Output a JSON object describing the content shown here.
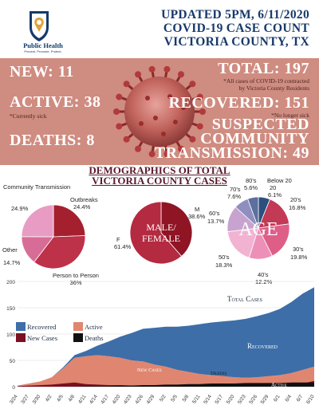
{
  "header": {
    "org_name": "Public Health",
    "org_tagline": "Prevent. Promote. Protect.",
    "line1": "UPDATED 5PM, 6/11/2020",
    "line2": "COVID-19 CASE COUNT",
    "line3": "VICTORIA COUNTY, TX"
  },
  "stats": {
    "new": "NEW: 11",
    "active": "ACTIVE: 38",
    "active_note": "*Currently sick",
    "deaths": "DEATHS: 8",
    "total": "TOTAL: 197",
    "total_note_1": "*All cases of COVID-19 contracted",
    "total_note_2": "by Victoria County Residents",
    "recovered": "RECOVERED: 151",
    "recovered_note": "*No longer sick",
    "suspected_1": "SUSPECTED",
    "suspected_2": "COMMUNITY",
    "suspected_3": "TRANSMISSION: 49"
  },
  "demographics": {
    "title_1": "DEMOGRAPHICS OF TOTAL",
    "title_2": "VICTORIA COUNTY CASES"
  },
  "chart_data": [
    {
      "type": "pie",
      "slices": [
        {
          "label": "Outbreaks",
          "value": 24.4,
          "value_label": "24.4%",
          "color": "#a5202e"
        },
        {
          "label": "Person to Person",
          "value": 36,
          "value_label": "36%",
          "color": "#bd3149"
        },
        {
          "label": "Other",
          "value": 14.7,
          "value_label": "14.7%",
          "color": "#d76d97"
        },
        {
          "label": "Community Transmission",
          "value": 24.9,
          "value_label": "24.9%",
          "color": "#e89cc4"
        }
      ]
    },
    {
      "type": "pie",
      "center_label_1": "MALE/",
      "center_label_2": "FEMALE",
      "slices": [
        {
          "label": "M",
          "value": 38.6,
          "value_label": "38.6%",
          "color": "#8f1424"
        },
        {
          "label": "F",
          "value": 61.4,
          "value_label": "61.4%",
          "color": "#b42a40"
        }
      ]
    },
    {
      "type": "pie",
      "center_label": "AGE",
      "slices": [
        {
          "label": "Below 20",
          "value": 6.1,
          "value_label": "6.1%",
          "color": "#2c4f7d"
        },
        {
          "label": "20's",
          "value": 16.8,
          "value_label": "16.8%",
          "color": "#c23a55"
        },
        {
          "label": "30's",
          "value": 19.8,
          "value_label": "19.8%",
          "color": "#de5e87"
        },
        {
          "label": "40's",
          "value": 12.2,
          "value_label": "12.2%",
          "color": "#ec90b8"
        },
        {
          "label": "50's",
          "value": 18.3,
          "value_label": "18.3%",
          "color": "#f2b3d2"
        },
        {
          "label": "60's",
          "value": 13.7,
          "value_label": "13.7%",
          "color": "#c8a3cf"
        },
        {
          "label": "70's",
          "value": 7.6,
          "value_label": "7.6%",
          "color": "#8f8fbf"
        },
        {
          "label": "80's",
          "value": 5.6,
          "value_label": "5.6%",
          "color": "#5d6f9e"
        }
      ]
    },
    {
      "type": "area",
      "ylim": [
        0,
        200
      ],
      "yticks": [
        0,
        50,
        100,
        150,
        200
      ],
      "xticks": [
        "3/24",
        "3/27",
        "3/30",
        "4/2",
        "4/5",
        "4/8",
        "4/11",
        "4/14",
        "4/17",
        "4/20",
        "4/23",
        "4/26",
        "4/29",
        "5/2",
        "5/5",
        "5/8",
        "5/11",
        "5/14",
        "5/17",
        "5/20",
        "5/23",
        "5/26",
        "5/29",
        "6/1",
        "6/4",
        "6/7",
        "6/10"
      ],
      "legend": [
        "Recovered",
        "Active",
        "New Cases",
        "Deaths"
      ],
      "annotations": [
        "Total Cases",
        "Recovered",
        "New Cases",
        "Deaths",
        "Active"
      ],
      "series": [
        {
          "name": "Recovered",
          "color": "#3d6ea8",
          "values": [
            0,
            0,
            0,
            0,
            2,
            5,
            10,
            18,
            28,
            40,
            52,
            62,
            70,
            76,
            82,
            88,
            95,
            100,
            104,
            108,
            112,
            116,
            120,
            126,
            135,
            145,
            151
          ]
        },
        {
          "name": "Active",
          "color": "#e08670",
          "values": [
            2,
            6,
            10,
            18,
            35,
            55,
            58,
            60,
            58,
            55,
            50,
            48,
            42,
            38,
            32,
            28,
            24,
            22,
            20,
            18,
            17,
            18,
            20,
            22,
            26,
            32,
            38
          ]
        },
        {
          "name": "New Cases",
          "color": "#7a1020",
          "values": [
            1,
            2,
            3,
            4,
            6,
            8,
            5,
            4,
            3,
            3,
            2,
            2,
            1,
            2,
            1,
            1,
            1,
            1,
            1,
            1,
            1,
            1,
            2,
            3,
            4,
            6,
            11
          ]
        },
        {
          "name": "Deaths",
          "color": "#111111",
          "values": [
            0,
            0,
            0,
            0,
            0,
            0,
            1,
            1,
            1,
            2,
            2,
            3,
            3,
            4,
            4,
            5,
            5,
            6,
            6,
            6,
            7,
            7,
            7,
            7,
            8,
            8,
            8
          ]
        }
      ]
    }
  ]
}
